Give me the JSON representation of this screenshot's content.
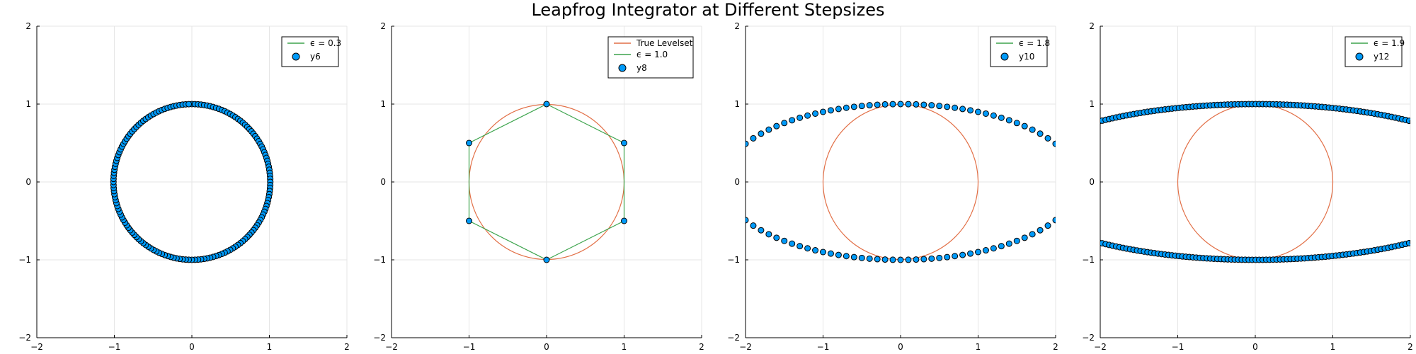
{
  "title": "Leapfrog Integrator at Different Stepsizes",
  "colors": {
    "levelset": "#e26f46",
    "line": "#3da44d",
    "marker_fill": "#009af9",
    "marker_edge": "#000000",
    "grid": "#e6e6e6"
  },
  "chart_data": [
    {
      "type": "scatter",
      "xlim": [
        -2,
        2
      ],
      "ylim": [
        -2,
        2
      ],
      "xticks": [
        -2,
        -1,
        0,
        1,
        2
      ],
      "yticks": [
        -2,
        -1,
        0,
        1,
        2
      ],
      "grid": true,
      "legend_position": "top-right",
      "epsilon": 0.3,
      "show_levelset": false,
      "series": [
        {
          "name": "ϵ = 0.3",
          "kind": "line",
          "points": []
        },
        {
          "name": "y6",
          "kind": "markers",
          "points": []
        }
      ]
    },
    {
      "type": "scatter",
      "xlim": [
        -2,
        2
      ],
      "ylim": [
        -2,
        2
      ],
      "xticks": [
        -2,
        -1,
        0,
        1,
        2
      ],
      "yticks": [
        -2,
        -1,
        0,
        1,
        2
      ],
      "grid": true,
      "legend_position": "top-right",
      "epsilon": 1.0,
      "show_levelset": true,
      "series": [
        {
          "name": "True Levelset",
          "kind": "levelset",
          "points": []
        },
        {
          "name": "ϵ = 1.0",
          "kind": "line",
          "points": [
            [
              0,
              1
            ],
            [
              1,
              0.5
            ],
            [
              1,
              -0.5
            ],
            [
              0,
              -1
            ],
            [
              -1,
              -0.5
            ],
            [
              -1,
              0.5
            ],
            [
              0,
              1
            ]
          ]
        },
        {
          "name": "y8",
          "kind": "markers",
          "points": [
            [
              0,
              1
            ],
            [
              1,
              0.5
            ],
            [
              1,
              -0.5
            ],
            [
              0,
              -1
            ],
            [
              -1,
              -0.5
            ],
            [
              -1,
              0.5
            ]
          ]
        }
      ]
    },
    {
      "type": "scatter",
      "xlim": [
        -2,
        2
      ],
      "ylim": [
        -2,
        2
      ],
      "xticks": [
        -2,
        -1,
        0,
        1,
        2
      ],
      "yticks": [
        -2,
        -1,
        0,
        1,
        2
      ],
      "grid": true,
      "legend_position": "top-right",
      "epsilon": 1.8,
      "show_levelset": true,
      "series": [
        {
          "name": "ϵ = 1.8",
          "kind": "line",
          "points": []
        },
        {
          "name": "y10",
          "kind": "markers",
          "points": []
        }
      ]
    },
    {
      "type": "scatter",
      "xlim": [
        -2,
        2
      ],
      "ylim": [
        -2,
        2
      ],
      "xticks": [
        -2,
        -1,
        0,
        1,
        2
      ],
      "yticks": [
        -2,
        -1,
        0,
        1,
        2
      ],
      "grid": true,
      "legend_position": "top-right",
      "epsilon": 1.9,
      "show_levelset": true,
      "series": [
        {
          "name": "ϵ = 1.9",
          "kind": "line",
          "points": []
        },
        {
          "name": "y12",
          "kind": "markers",
          "points": []
        }
      ]
    }
  ]
}
